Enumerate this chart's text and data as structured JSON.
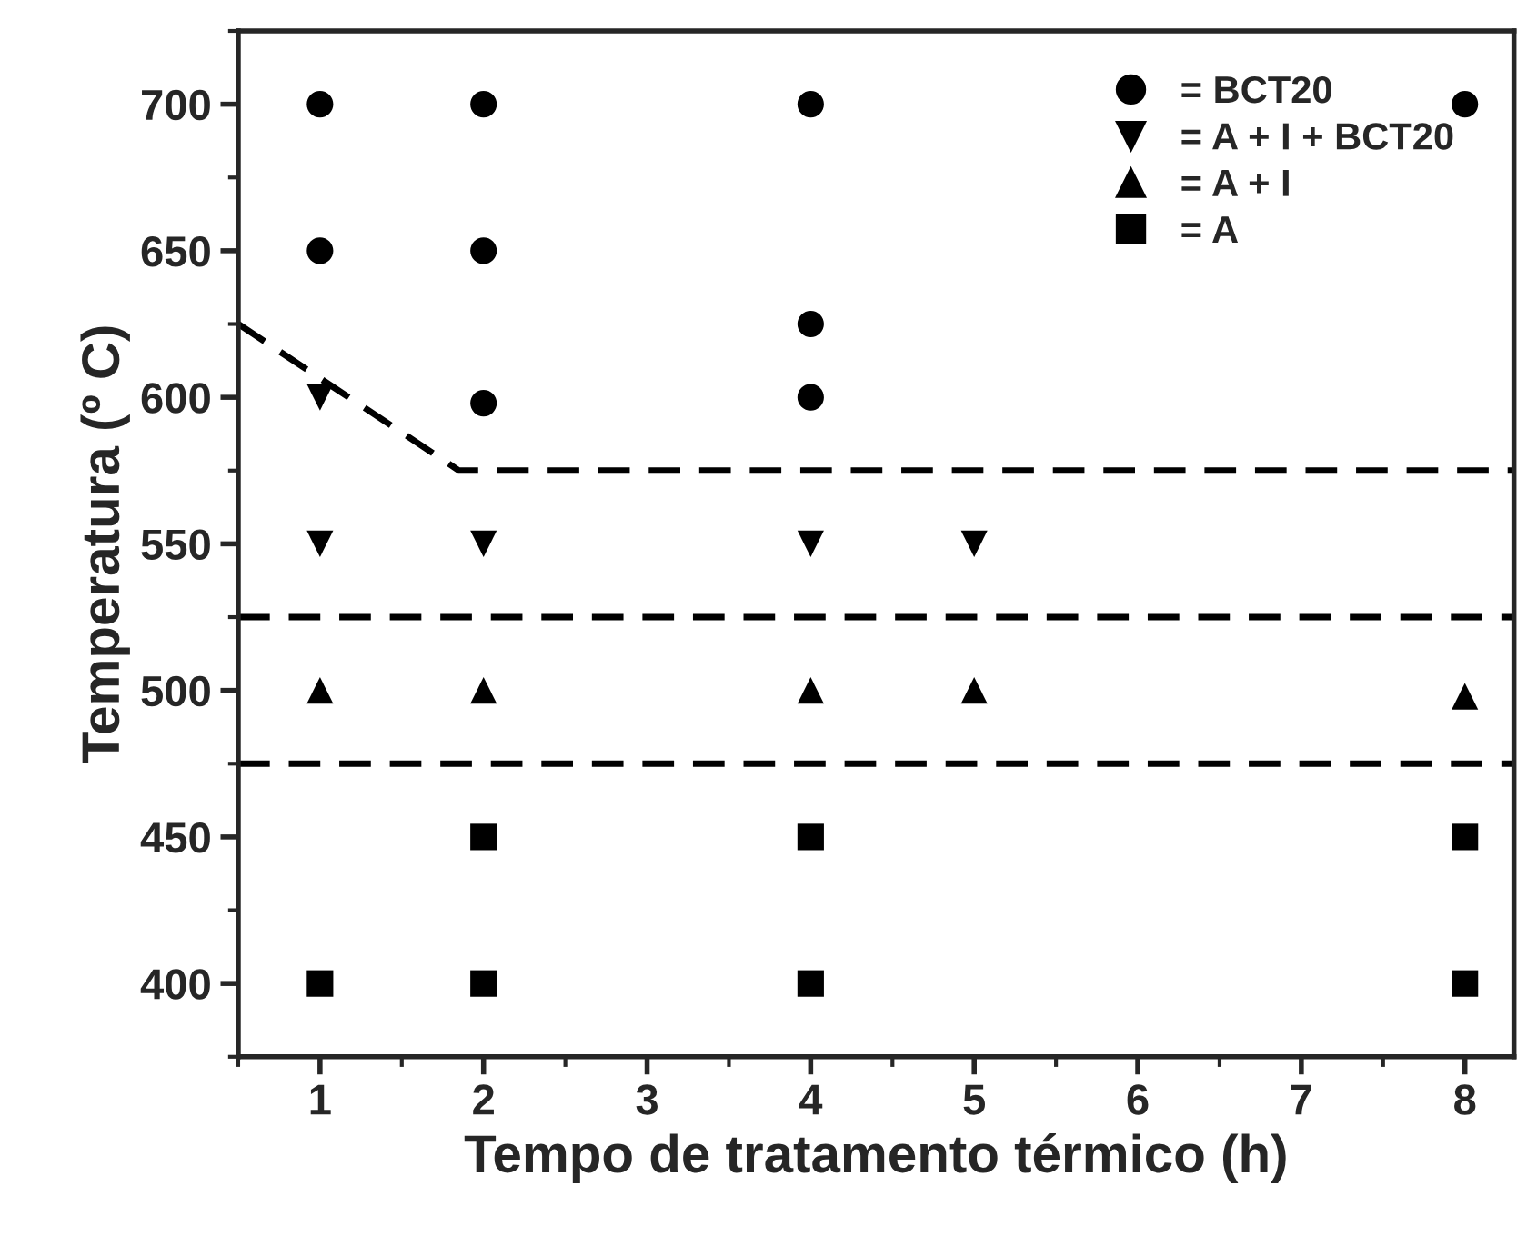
{
  "chart_data": {
    "type": "scatter",
    "xlabel": "Tempo de tratamento térmico (h)",
    "ylabel": "Temperatura (º C)",
    "xlim": [
      0.5,
      8.3
    ],
    "xticks": [
      1,
      2,
      3,
      4,
      5,
      6,
      7,
      8
    ],
    "ylim": [
      375,
      725
    ],
    "yticks": [
      400,
      450,
      500,
      550,
      600,
      650,
      700
    ],
    "grid": false,
    "legend": "top right",
    "series": [
      {
        "name": "= BCT20",
        "color": "#000000",
        "marker": "circle",
        "x": [
          1,
          1,
          2,
          2,
          2,
          4,
          4,
          4,
          8
        ],
        "values": [
          700,
          650,
          700,
          650,
          598,
          700,
          625,
          600,
          700
        ]
      },
      {
        "name": "= A + I + BCT20",
        "color": "#000000",
        "marker": "triangle_down",
        "x": [
          1,
          1,
          2,
          4,
          5
        ],
        "values": [
          600,
          550,
          550,
          550,
          550
        ]
      },
      {
        "name": "= A + I",
        "color": "#000000",
        "marker": "triangle",
        "x": [
          1,
          2,
          4,
          5,
          8
        ],
        "values": [
          500,
          500,
          500,
          500,
          498
        ]
      },
      {
        "name": "= A",
        "color": "#000000",
        "marker": "square",
        "x": [
          1,
          2,
          2,
          4,
          4,
          8,
          8
        ],
        "values": [
          400,
          450,
          400,
          450,
          400,
          450,
          400
        ]
      },
      {
        "type": "line",
        "color": "#000000",
        "line_style": "dashed",
        "x": [
          0.5,
          1.85,
          8.3
        ],
        "values": [
          625,
          575,
          575
        ]
      }
    ],
    "ref_lines": [
      {
        "axis": "y",
        "value": 525,
        "color": "#000000",
        "line_style": "dashed"
      },
      {
        "axis": "y",
        "value": 475,
        "color": "#000000",
        "line_style": "dashed"
      }
    ]
  }
}
